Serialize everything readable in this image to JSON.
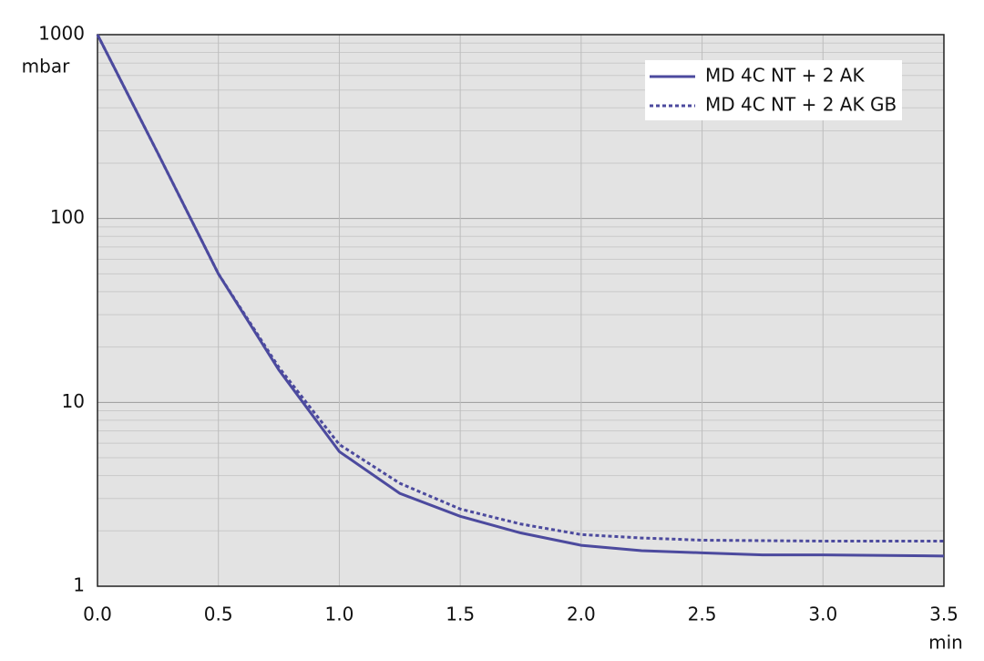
{
  "chart_data": {
    "type": "line",
    "x_label": "min",
    "y_label": "mbar",
    "x": [
      0,
      0.25,
      0.5,
      0.75,
      1.0,
      1.25,
      1.5,
      1.75,
      2.0,
      2.25,
      2.5,
      2.75,
      3.0,
      3.5
    ],
    "series": [
      {
        "name": "MD 4C NT + 2 AK",
        "color": "#4c4a9e",
        "style": "solid",
        "values": [
          1000,
          226,
          50,
          15,
          5.4,
          3.2,
          2.4,
          1.95,
          1.67,
          1.56,
          1.52,
          1.48,
          1.48,
          1.46
        ]
      },
      {
        "name": "MD 4C NT + 2 AK GB",
        "color": "#4c4a9e",
        "style": "dotted",
        "values": [
          1000,
          226,
          50,
          15.5,
          5.9,
          3.63,
          2.63,
          2.18,
          1.91,
          1.83,
          1.78,
          1.77,
          1.76,
          1.76
        ]
      }
    ],
    "xlim": [
      0,
      3.5
    ],
    "xticks": [
      {
        "value": 0,
        "label": "0.0"
      },
      0.5,
      {
        "value": 1,
        "label": "1.0"
      },
      1.5,
      {
        "value": 2,
        "label": "2.0"
      },
      2.5,
      {
        "value": 3,
        "label": "3.0"
      },
      3.5
    ],
    "ylim": [
      1,
      1000
    ],
    "yticks": [
      1,
      10,
      100,
      1000
    ],
    "log_y": true,
    "grid": true,
    "minor_grid": true,
    "legend": "upper right"
  }
}
